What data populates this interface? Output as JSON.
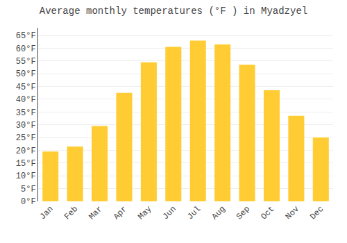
{
  "chart_data": {
    "type": "bar",
    "title": "Average monthly temperatures (°F ) in Myadzyel",
    "categories": [
      "Jan",
      "Feb",
      "Mar",
      "Apr",
      "May",
      "Jun",
      "Jul",
      "Aug",
      "Sep",
      "Oct",
      "Nov",
      "Dec"
    ],
    "values": [
      19.5,
      21.5,
      29.5,
      42.5,
      54.5,
      60.5,
      63.0,
      61.5,
      53.5,
      43.5,
      33.5,
      25.0
    ],
    "color": "#FFCC33",
    "ylim": [
      0,
      68
    ],
    "yticks": [
      {
        "value": 0,
        "label": "0°F"
      },
      {
        "value": 5,
        "label": "5°F"
      },
      {
        "value": 10,
        "label": "10°F"
      },
      {
        "value": 15,
        "label": "15°F"
      },
      {
        "value": 20,
        "label": "20°F"
      },
      {
        "value": 25,
        "label": "25°F"
      },
      {
        "value": 30,
        "label": "30°F"
      },
      {
        "value": 35,
        "label": "35°F"
      },
      {
        "value": 40,
        "label": "40°F"
      },
      {
        "value": 45,
        "label": "45°F"
      },
      {
        "value": 50,
        "label": "50°F"
      },
      {
        "value": 55,
        "label": "55°F"
      },
      {
        "value": 60,
        "label": "60°F"
      },
      {
        "value": 65,
        "label": "65°F"
      }
    ],
    "grid": true
  }
}
